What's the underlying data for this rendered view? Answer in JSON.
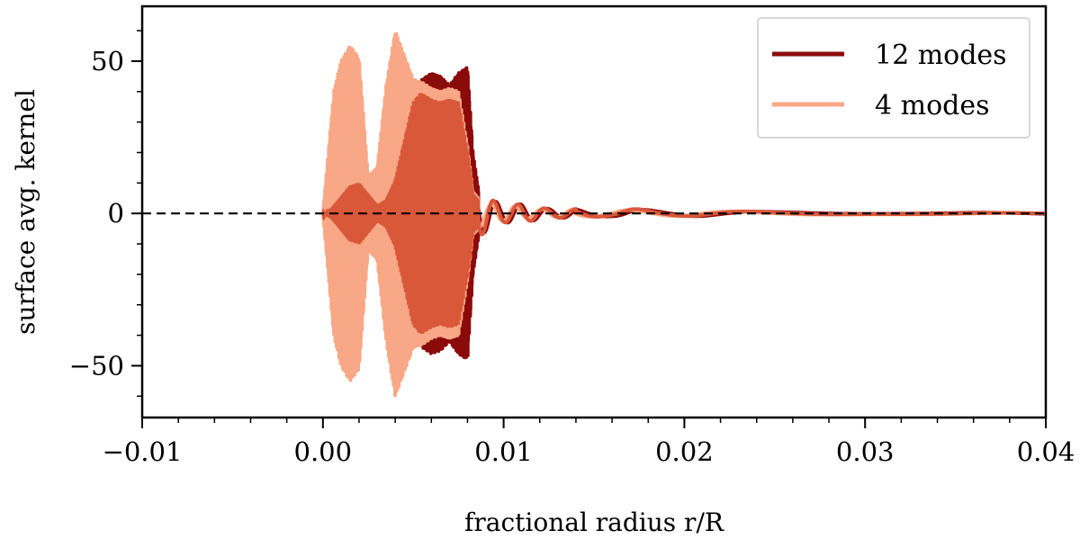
{
  "chart_data": {
    "type": "line",
    "xlabel": "fractional radius r/R",
    "ylabel": "surface avg. kernel",
    "xlim": [
      -0.01,
      0.04
    ],
    "ylim": [
      -67,
      68
    ],
    "x_ticks": [
      {
        "value": -0.01,
        "label": "−0.01"
      },
      {
        "value": 0.0,
        "label": "0.00"
      },
      {
        "value": 0.01,
        "label": "0.01"
      },
      {
        "value": 0.02,
        "label": "0.02"
      },
      {
        "value": 0.03,
        "label": "0.03"
      },
      {
        "value": 0.04,
        "label": "0.04"
      }
    ],
    "y_ticks": [
      {
        "value": -50,
        "label": "−50"
      },
      {
        "value": 0,
        "label": "0"
      },
      {
        "value": 50,
        "label": "50"
      }
    ],
    "reference_line": {
      "y": 0,
      "style": "dashed",
      "color": "#000000"
    },
    "legend": {
      "placement": "top-right"
    },
    "series": [
      {
        "name": "12 modes",
        "color": "#8b0a0a",
        "x": [
          0.0,
          0.0005,
          0.001,
          0.0015,
          0.002,
          0.0025,
          0.003,
          0.0035,
          0.004,
          0.0045,
          0.005,
          0.0055,
          0.006,
          0.0065,
          0.007,
          0.0075,
          0.008,
          0.0083,
          0.0086,
          0.009,
          0.0095,
          0.01,
          0.0105,
          0.011,
          0.0115,
          0.012,
          0.0125,
          0.013,
          0.0135,
          0.014,
          0.0145,
          0.015,
          0.0155,
          0.016,
          0.0165,
          0.017,
          0.0175,
          0.018,
          0.0185,
          0.019,
          0.0195,
          0.02,
          0.021,
          0.022,
          0.023,
          0.024,
          0.025,
          0.026,
          0.027,
          0.028,
          0.029,
          0.03,
          0.032,
          0.034,
          0.036,
          0.038,
          0.04
        ],
        "envelope": [
          0,
          2,
          6,
          10,
          11,
          7,
          3,
          5,
          12,
          26,
          40,
          44,
          46,
          45,
          42,
          46,
          48,
          20,
          8,
          6,
          4,
          3,
          3,
          3,
          2.5,
          2,
          1.5,
          1.5,
          1.4,
          1.5,
          1.4,
          1.2,
          1.0,
          1.0,
          1.4,
          1.6,
          1.4,
          1.1,
          0.9,
          0.8,
          0.8,
          0.9,
          0.9,
          0.8,
          0.7,
          0.6,
          0.5,
          0.5,
          0.5,
          0.5,
          0.4,
          0.3,
          0.3,
          0.3,
          0.3,
          0.2,
          0.2
        ]
      },
      {
        "name": "4 modes",
        "color": "#f8a886",
        "x": [
          0.0,
          0.0003,
          0.0006,
          0.001,
          0.0015,
          0.002,
          0.0025,
          0.003,
          0.0035,
          0.004,
          0.0045,
          0.005,
          0.0055,
          0.006,
          0.0065,
          0.007,
          0.0075,
          0.008,
          0.0083,
          0.0086,
          0.009,
          0.0095,
          0.01,
          0.0105,
          0.011,
          0.0115,
          0.012,
          0.0125,
          0.013,
          0.0135,
          0.014,
          0.0145,
          0.015,
          0.0155,
          0.016,
          0.0165,
          0.017,
          0.0175,
          0.018,
          0.0185,
          0.019,
          0.0195,
          0.02,
          0.021,
          0.022,
          0.023,
          0.024,
          0.025,
          0.026,
          0.027,
          0.028,
          0.029,
          0.03,
          0.032,
          0.034,
          0.036,
          0.038,
          0.04
        ],
        "envelope": [
          0,
          20,
          40,
          50,
          55,
          51,
          12,
          15,
          42,
          60,
          52,
          44,
          43,
          41,
          40,
          41,
          40,
          22,
          7,
          5,
          3,
          3,
          2.5,
          2.5,
          2,
          1.5,
          1.4,
          1.3,
          1.2,
          1.3,
          1.5,
          1.2,
          1.0,
          0.9,
          1.0,
          1.2,
          1.1,
          1.0,
          0.9,
          0.8,
          0.8,
          0.9,
          0.9,
          0.8,
          0.7,
          0.6,
          0.5,
          0.5,
          0.5,
          0.5,
          0.4,
          0.3,
          0.3,
          0.3,
          0.3,
          0.2,
          0.2
        ]
      }
    ]
  }
}
